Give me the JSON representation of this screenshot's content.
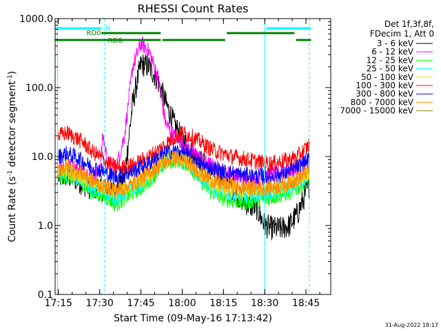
{
  "chart_data": {
    "type": "line",
    "title": "RHESSI Count Rates",
    "xlabel": "Start Time (09-May-16 17:13:42)",
    "ylabel_main": "Count Rate (s",
    "ylabel_sup": "-1",
    "ylabel_tail": " detector segment",
    "ylabel_sup2": "-1",
    "ylabel_close": ")",
    "y_scale": "log",
    "ylim": [
      0.1,
      1000
    ],
    "xlim_minutes": [
      17.23,
      18.9
    ],
    "x_ticks": [
      {
        "value": 17.25,
        "label": "17:15"
      },
      {
        "value": 17.5,
        "label": "17:30"
      },
      {
        "value": 17.75,
        "label": "17:45"
      },
      {
        "value": 18.0,
        "label": "18:00"
      },
      {
        "value": 18.25,
        "label": "18:15"
      },
      {
        "value": 18.5,
        "label": "18:30"
      },
      {
        "value": 18.75,
        "label": "18:45"
      }
    ],
    "y_ticks": [
      {
        "value": 0.1,
        "label": "0.1"
      },
      {
        "value": 1,
        "label": "1.0"
      },
      {
        "value": 10,
        "label": "10.0"
      },
      {
        "value": 100,
        "label": "100.0"
      },
      {
        "value": 1000,
        "label": "1000.0"
      }
    ],
    "legend_header": [
      "Det 1f,3f,8f,",
      "FDecim 1, Att 0"
    ],
    "legend_placement": "right",
    "series": [
      {
        "name": "3 - 6 keV",
        "color": "#000000",
        "x": [
          17.25,
          17.3,
          17.35,
          17.4,
          17.45,
          17.5,
          17.55,
          17.6,
          17.65,
          17.7,
          17.75,
          17.8,
          17.85,
          17.9,
          17.95,
          18.0,
          18.05,
          18.1,
          18.15,
          18.2,
          18.25,
          18.3,
          18.35,
          18.4,
          18.45,
          18.5,
          18.55,
          18.6,
          18.65,
          18.7,
          18.75,
          18.77
        ],
        "y": [
          5,
          5.3,
          4.8,
          4,
          3.5,
          3.5,
          3.2,
          3,
          5,
          60,
          220,
          200,
          130,
          60,
          30,
          18,
          12,
          9,
          7,
          5.5,
          4.5,
          3.5,
          2.5,
          2,
          1.8,
          1,
          0.9,
          0.9,
          1,
          1.5,
          3,
          4
        ]
      },
      {
        "name": "6 - 12 keV",
        "color": "#ff00ff",
        "x": [
          17.25,
          17.3,
          17.35,
          17.4,
          17.45,
          17.5,
          17.52,
          17.55,
          17.6,
          17.65,
          17.7,
          17.75,
          17.8,
          17.85,
          17.9,
          17.95,
          18.0,
          18.05,
          18.1,
          18.15,
          18.2,
          18.25,
          18.3,
          18.35,
          18.4,
          18.45,
          18.5,
          18.55,
          18.6,
          18.65,
          18.7,
          18.75,
          18.77
        ],
        "y": [
          7,
          7.5,
          7,
          6,
          5.5,
          6,
          20,
          8,
          7,
          20,
          200,
          440,
          330,
          150,
          30,
          20,
          16,
          12,
          10,
          8,
          7,
          6,
          5.5,
          5,
          4.5,
          4.5,
          5,
          5.5,
          6,
          6,
          7,
          8,
          9
        ]
      },
      {
        "name": "12 - 25 keV",
        "color": "#00ff00",
        "x": [
          17.25,
          17.3,
          17.35,
          17.4,
          17.45,
          17.5,
          17.55,
          17.6,
          17.65,
          17.7,
          17.75,
          17.8,
          17.85,
          17.9,
          17.95,
          18.0,
          18.05,
          18.1,
          18.15,
          18.2,
          18.25,
          18.3,
          18.35,
          18.4,
          18.45,
          18.5,
          18.55,
          18.6,
          18.65,
          18.7,
          18.75,
          18.77
        ],
        "y": [
          5,
          5.2,
          4.8,
          4,
          3,
          2.8,
          2.5,
          2,
          2.5,
          3,
          3.5,
          4.5,
          6,
          8,
          9,
          8.5,
          7,
          5,
          3.5,
          2.8,
          2.5,
          2.3,
          2.2,
          2.2,
          2.3,
          2.4,
          2.6,
          2.8,
          3,
          3.5,
          4.5,
          5
        ]
      },
      {
        "name": "25 - 50 keV",
        "color": "#00ffff",
        "x": [
          17.25,
          17.3,
          17.35,
          17.4,
          17.45,
          17.5,
          17.55,
          17.6,
          17.65,
          17.7,
          17.75,
          17.8,
          17.85,
          17.9,
          17.95,
          18.0,
          18.05,
          18.1,
          18.15,
          18.2,
          18.25,
          18.3,
          18.35,
          18.4,
          18.45,
          18.5,
          18.55,
          18.6,
          18.65,
          18.7,
          18.75,
          18.77
        ],
        "y": [
          5.5,
          5.8,
          5.2,
          4.5,
          3.5,
          3.2,
          3,
          2.5,
          3,
          3.5,
          4,
          5,
          6.5,
          8.5,
          10,
          9,
          7.5,
          5.5,
          4,
          3.3,
          3,
          2.8,
          2.7,
          2.7,
          2.8,
          2.9,
          3,
          3.2,
          3.5,
          4,
          5,
          5.5
        ]
      },
      {
        "name": "50 - 100 keV",
        "color": "#ffd700",
        "x": [
          17.25,
          17.3,
          17.35,
          17.4,
          17.45,
          17.5,
          17.55,
          17.6,
          17.65,
          17.7,
          17.75,
          17.8,
          17.85,
          17.9,
          17.95,
          18.0,
          18.05,
          18.1,
          18.15,
          18.2,
          18.25,
          18.3,
          18.35,
          18.4,
          18.45,
          18.5,
          18.55,
          18.6,
          18.65,
          18.7,
          18.75,
          18.77
        ],
        "y": [
          6,
          6.3,
          5.8,
          5,
          4,
          3.7,
          3.5,
          3,
          3.4,
          4,
          4.5,
          5.5,
          7,
          9,
          10,
          9.5,
          8,
          6,
          4.5,
          3.8,
          3.5,
          3.3,
          3.2,
          3.2,
          3.3,
          3.4,
          3.5,
          3.7,
          4,
          4.5,
          5.5,
          6
        ]
      },
      {
        "name": "100 - 300 keV",
        "color": "#ff0000",
        "x": [
          17.25,
          17.3,
          17.35,
          17.4,
          17.45,
          17.5,
          17.55,
          17.6,
          17.65,
          17.7,
          17.75,
          17.8,
          17.85,
          17.9,
          17.95,
          18.0,
          18.05,
          18.1,
          18.15,
          18.2,
          18.25,
          18.3,
          18.35,
          18.4,
          18.45,
          18.5,
          18.55,
          18.6,
          18.65,
          18.7,
          18.75,
          18.77
        ],
        "y": [
          20,
          22,
          19,
          16,
          12,
          10,
          8,
          7,
          7,
          7.5,
          8.5,
          10,
          12,
          15,
          19,
          22,
          20,
          17,
          14,
          12,
          11,
          10,
          9.5,
          9,
          8.5,
          8,
          8,
          8.5,
          9,
          10,
          13,
          15
        ]
      },
      {
        "name": "300 - 800 keV",
        "color": "#0000ff",
        "x": [
          17.25,
          17.3,
          17.35,
          17.4,
          17.45,
          17.5,
          17.55,
          17.6,
          17.65,
          17.7,
          17.75,
          17.8,
          17.85,
          17.9,
          17.95,
          18.0,
          18.05,
          18.1,
          18.15,
          18.2,
          18.25,
          18.3,
          18.35,
          18.4,
          18.45,
          18.5,
          18.55,
          18.6,
          18.65,
          18.7,
          18.75,
          18.77
        ],
        "y": [
          10,
          11,
          10,
          8.5,
          7,
          6.5,
          5.5,
          5,
          5.5,
          6,
          7,
          8,
          9.5,
          11,
          12,
          11.5,
          10,
          8,
          7,
          6.5,
          6,
          5.8,
          5.5,
          5.3,
          5.2,
          5.2,
          5.2,
          5.5,
          6,
          7,
          8.5,
          9
        ]
      },
      {
        "name": "800 - 7000 keV",
        "color": "#ff8c00",
        "x": [
          17.25,
          17.3,
          17.35,
          17.4,
          17.45,
          17.5,
          17.55,
          17.6,
          17.65,
          17.7,
          17.75,
          17.8,
          17.85,
          17.9,
          17.95,
          18.0,
          18.05,
          18.1,
          18.15,
          18.2,
          18.25,
          18.3,
          18.35,
          18.4,
          18.45,
          18.5,
          18.55,
          18.6,
          18.65,
          18.7,
          18.75,
          18.77
        ],
        "y": [
          6.5,
          7,
          6.5,
          5.5,
          4.5,
          4,
          3.6,
          3.3,
          3.5,
          4,
          4.8,
          5.8,
          7,
          8.5,
          9.5,
          9,
          7.8,
          6,
          5,
          4.3,
          4,
          3.8,
          3.6,
          3.5,
          3.5,
          3.5,
          3.6,
          3.8,
          4.2,
          4.8,
          5.8,
          6.5
        ]
      },
      {
        "name": "7000 - 15000 keV",
        "color": "#808000",
        "x": [],
        "y": []
      }
    ],
    "vertical_lines": [
      {
        "x": 17.245,
        "color": "#00ffff",
        "style": "solid"
      },
      {
        "x": 17.53,
        "color": "#00ffff",
        "style": "dashed"
      },
      {
        "x": 18.5,
        "color": "#00ffff",
        "style": "solid"
      },
      {
        "x": 18.77,
        "color": "#00ffff",
        "style": "dashed"
      }
    ],
    "state_bars": [
      {
        "label": "N",
        "color": "#00ffff",
        "segments": [
          [
            17.23,
            17.51
          ],
          [
            18.51,
            18.78
          ]
        ],
        "level": 0
      },
      {
        "label": "RD0",
        "color": "#008000",
        "segments": [
          [
            17.51,
            17.87
          ],
          [
            18.27,
            18.68
          ]
        ],
        "level": 1
      },
      {
        "label": "RD6",
        "color": "#008000",
        "segments": [
          [
            17.23,
            17.87
          ],
          [
            17.88,
            18.26
          ],
          [
            18.69,
            18.78
          ]
        ],
        "level": 2
      }
    ],
    "timestamp": "31-Aug-2022 18:17"
  }
}
